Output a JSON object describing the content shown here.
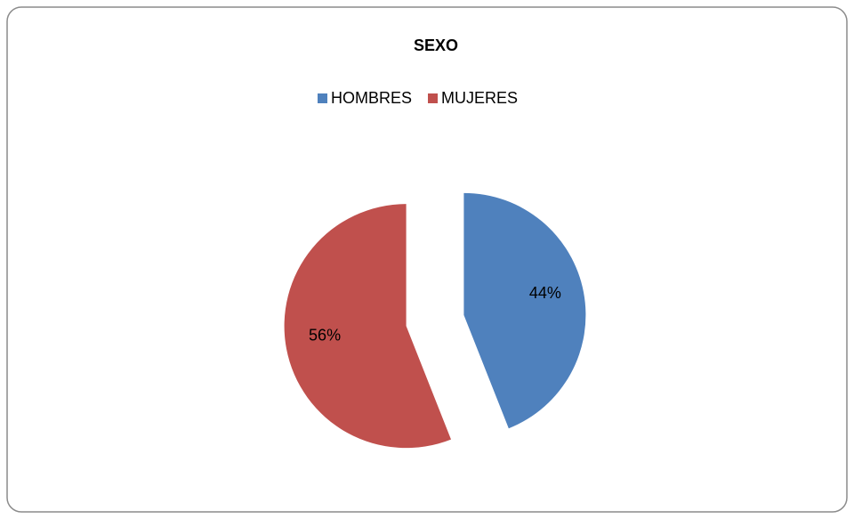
{
  "chart_data": {
    "type": "pie",
    "title": "SEXO",
    "categories": [
      "HOMBRES",
      "MUJERES"
    ],
    "values": [
      44,
      56
    ],
    "value_labels": [
      "44%",
      "56%"
    ],
    "colors": [
      "#4f81bd",
      "#c0504d"
    ],
    "legend": "top"
  }
}
